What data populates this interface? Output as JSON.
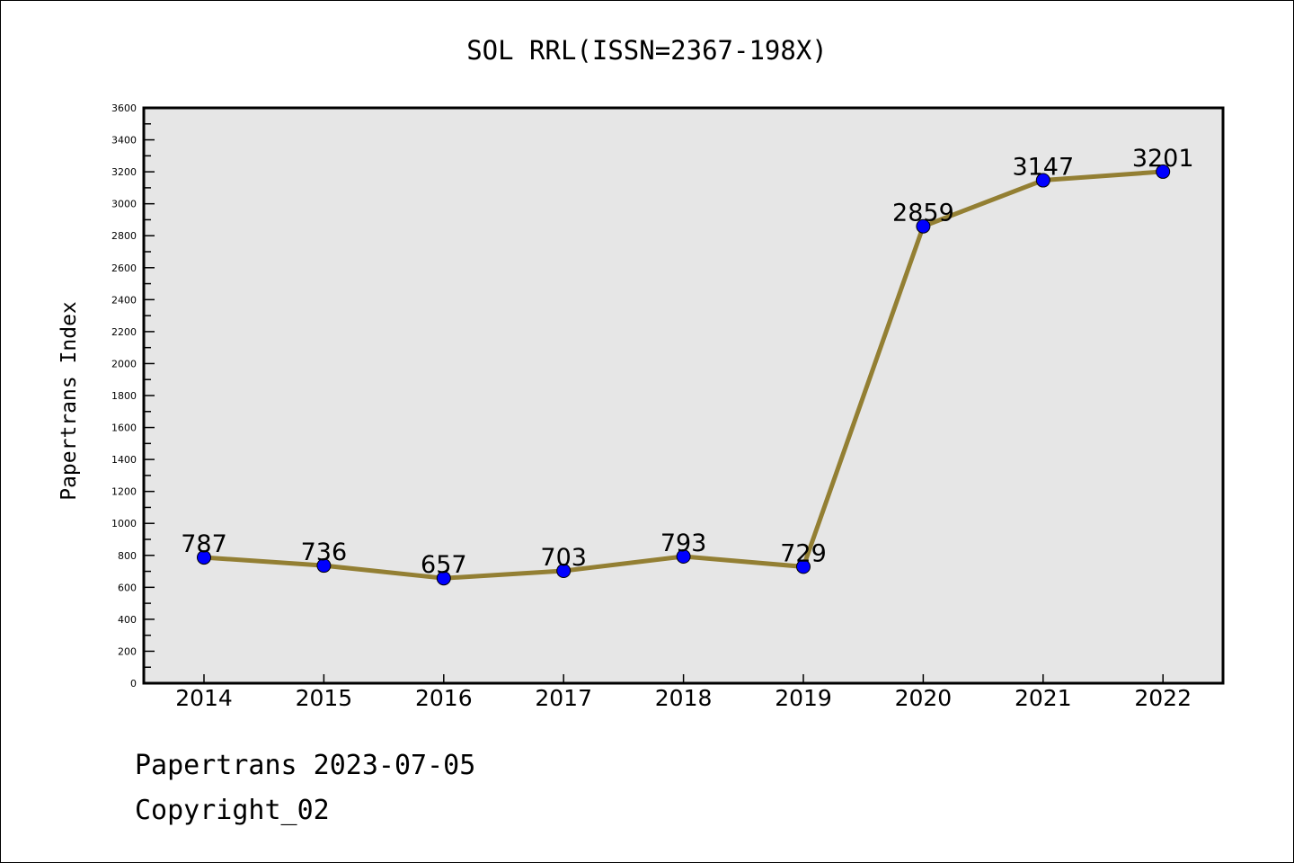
{
  "chart_data": {
    "type": "line",
    "title": "SOL RRL(ISSN=2367-198X)",
    "xlabel": "",
    "ylabel": "Papertrans Index",
    "categories": [
      "2014",
      "2015",
      "2016",
      "2017",
      "2018",
      "2019",
      "2020",
      "2021",
      "2022"
    ],
    "series": [
      {
        "name": "Papertrans Index",
        "values": [
          787,
          736,
          657,
          703,
          793,
          729,
          2859,
          3147,
          3201
        ]
      }
    ],
    "ylim": [
      0,
      3600
    ],
    "yticks": [
      0,
      200,
      400,
      600,
      800,
      1000,
      1200,
      1400,
      1600,
      1800,
      2000,
      2200,
      2400,
      2600,
      2800,
      3000,
      3200,
      3400,
      3600
    ],
    "grid": false,
    "colors": {
      "line": "#937f33",
      "marker": "#0000ff",
      "background": "#e6e6e6"
    }
  },
  "footer": {
    "line1": "Papertrans 2023-07-05",
    "line2": "Copyright_02"
  }
}
